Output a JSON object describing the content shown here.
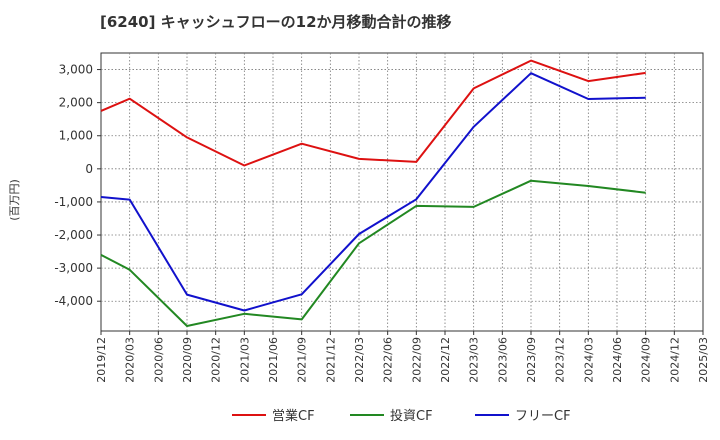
{
  "chart_data": {
    "type": "line",
    "title": "[6240]  キャッシュフローの12か月移動合計の推移",
    "ylabel": "(百万円)",
    "xlabel": "",
    "ylim": [
      -4900,
      3500
    ],
    "yticks": [
      3000,
      2000,
      1000,
      0,
      -1000,
      -2000,
      -3000,
      -4000
    ],
    "ytick_labels": [
      "3,000",
      "2,000",
      "1,000",
      "0",
      "-1,000",
      "-2,000",
      "-3,000",
      "-4,000"
    ],
    "categories": [
      "2019/12",
      "2020/03",
      "2020/06",
      "2020/09",
      "2020/12",
      "2021/03",
      "2021/06",
      "2021/09",
      "2021/12",
      "2022/03",
      "2022/06",
      "2022/09",
      "2022/12",
      "2023/03",
      "2023/06",
      "2023/09",
      "2023/12",
      "2024/03",
      "2024/06",
      "2024/09",
      "2024/12",
      "2025/03"
    ],
    "grid": true,
    "legend_position": "bottom",
    "series": [
      {
        "name": "営業CF",
        "color": "#dd1111",
        "values": [
          1750,
          2120,
          null,
          950,
          null,
          100,
          null,
          760,
          null,
          300,
          null,
          210,
          null,
          2430,
          null,
          3270,
          null,
          2650,
          null,
          2900,
          null,
          null
        ]
      },
      {
        "name": "投資CF",
        "color": "#228822",
        "values": [
          -2600,
          -3050,
          null,
          -4750,
          null,
          -4380,
          null,
          -4550,
          null,
          -2250,
          null,
          -1120,
          null,
          -1150,
          null,
          -360,
          null,
          -520,
          null,
          -720,
          null,
          null
        ]
      },
      {
        "name": "フリーCF",
        "color": "#1111cc",
        "values": [
          -850,
          -930,
          null,
          -3800,
          null,
          -4280,
          null,
          -3790,
          null,
          -1970,
          null,
          -920,
          null,
          1270,
          null,
          2890,
          null,
          2110,
          null,
          2150,
          null,
          null
        ]
      }
    ]
  }
}
